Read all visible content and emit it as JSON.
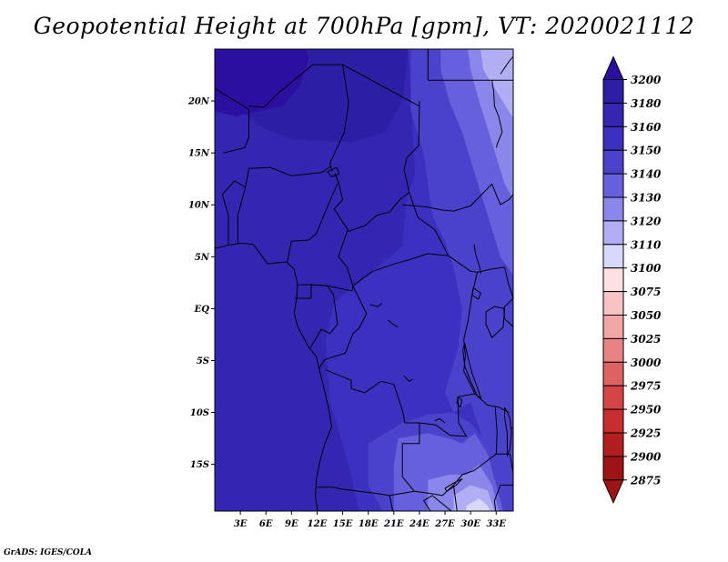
{
  "title": "Geopotential Height at 700hPa [gpm], VT: 2020021112",
  "credit": "GrADS: IGES/COLA",
  "map": {
    "lat_labels": [
      "20N",
      "15N",
      "10N",
      "5N",
      "EQ",
      "5S",
      "10S",
      "15S"
    ],
    "lat_values": [
      20,
      15,
      10,
      5,
      0,
      -5,
      -10,
      -15
    ],
    "lon_labels": [
      "3E",
      "6E",
      "9E",
      "12E",
      "15E",
      "18E",
      "21E",
      "24E",
      "27E",
      "30E",
      "33E"
    ],
    "lon_values": [
      3,
      6,
      9,
      12,
      15,
      18,
      21,
      24,
      27,
      30,
      33
    ],
    "lon_range": [
      0,
      35
    ],
    "lat_range": [
      -19.5,
      25
    ]
  },
  "colorbar": {
    "levels": [
      "3200",
      "3180",
      "3160",
      "3150",
      "3140",
      "3130",
      "3120",
      "3110",
      "3100",
      "3075",
      "3050",
      "3025",
      "3000",
      "2975",
      "2950",
      "2925",
      "2900",
      "2875"
    ],
    "colors": [
      "#2b0fa0",
      "#2c1fa6",
      "#3327b2",
      "#3b30bf",
      "#4b42cc",
      "#6660dc",
      "#8a86ea",
      "#b1aff4",
      "#d8d8fb",
      "#fbe1e1",
      "#f8c3c3",
      "#f1a5a5",
      "#e88383",
      "#df6262",
      "#d54444",
      "#c82e2e",
      "#b31f1f",
      "#9e1414"
    ]
  },
  "field_colors": {
    "c3190": "#2b0fa0",
    "c3170": "#2c1fa6",
    "c3155": "#3327b2",
    "c3145": "#3b30bf",
    "c3135": "#4b42cc",
    "c3125": "#6660dc",
    "c3115": "#8a86ea",
    "c3105": "#b1aff4",
    "c3095": "#d8d8fb"
  }
}
